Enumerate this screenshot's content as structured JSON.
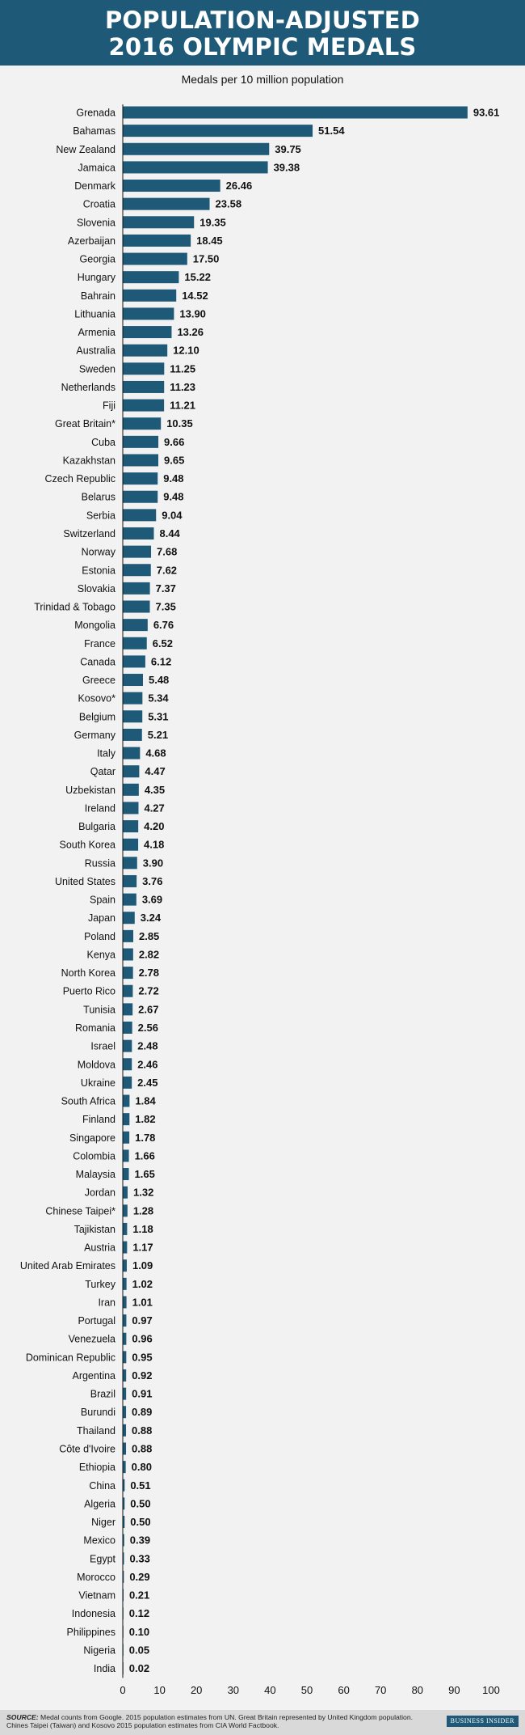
{
  "header": {
    "title_line1": "POPULATION-ADJUSTED",
    "title_line2": "2016 OLYMPIC MEDALS"
  },
  "footer": {
    "source_label": "SOURCE:",
    "source_text": "Medal counts from Google. 2015 population estimates from UN. Great Britain represented by United Kingdom population. Chines Taipei (Taiwan) and Kosovo 2015 population estimates from CIA World Factbook.",
    "brand": "BUSINESS INSIDER"
  },
  "chart_data": {
    "type": "bar",
    "orientation": "horizontal",
    "title": "POPULATION-ADJUSTED 2016 OLYMPIC MEDALS",
    "subtitle": "Medals per 10 million population",
    "xlim": [
      0,
      100
    ],
    "xticks": [
      0,
      10,
      20,
      30,
      40,
      50,
      60,
      70,
      80,
      90,
      100
    ],
    "grid": false,
    "bar_color": "#1e5a78",
    "categories": [
      "Grenada",
      "Bahamas",
      "New Zealand",
      "Jamaica",
      "Denmark",
      "Croatia",
      "Slovenia",
      "Azerbaijan",
      "Georgia",
      "Hungary",
      "Bahrain",
      "Lithuania",
      "Armenia",
      "Australia",
      "Sweden",
      "Netherlands",
      "Fiji",
      "Great Britain*",
      "Cuba",
      "Kazakhstan",
      "Czech Republic",
      "Belarus",
      "Serbia",
      "Switzerland",
      "Norway",
      "Estonia",
      "Slovakia",
      "Trinidad & Tobago",
      "Mongolia",
      "France",
      "Canada",
      "Greece",
      "Kosovo*",
      "Belgium",
      "Germany",
      "Italy",
      "Qatar",
      "Uzbekistan",
      "Ireland",
      "Bulgaria",
      "South Korea",
      "Russia",
      "United States",
      "Spain",
      "Japan",
      "Poland",
      "Kenya",
      "North Korea",
      "Puerto Rico",
      "Tunisia",
      "Romania",
      "Israel",
      "Moldova",
      "Ukraine",
      "South Africa",
      "Finland",
      "Singapore",
      "Colombia",
      "Malaysia",
      "Jordan",
      "Chinese Taipei*",
      "Tajikistan",
      "Austria",
      "United Arab Emirates",
      "Turkey",
      "Iran",
      "Portugal",
      "Venezuela",
      "Dominican Republic",
      "Argentina",
      "Brazil",
      "Burundi",
      "Thailand",
      "Côte d'Ivoire",
      "Ethiopia",
      "China",
      "Algeria",
      "Niger",
      "Mexico",
      "Egypt",
      "Morocco",
      "Vietnam",
      "Indonesia",
      "Philippines",
      "Nigeria",
      "India"
    ],
    "values": [
      93.61,
      51.54,
      39.75,
      39.38,
      26.46,
      23.58,
      19.35,
      18.45,
      17.5,
      15.22,
      14.52,
      13.9,
      13.26,
      12.1,
      11.25,
      11.23,
      11.21,
      10.35,
      9.66,
      9.65,
      9.48,
      9.48,
      9.04,
      8.44,
      7.68,
      7.62,
      7.37,
      7.35,
      6.76,
      6.52,
      6.12,
      5.48,
      5.34,
      5.31,
      5.21,
      4.68,
      4.47,
      4.35,
      4.27,
      4.2,
      4.18,
      3.9,
      3.76,
      3.69,
      3.24,
      2.85,
      2.82,
      2.78,
      2.72,
      2.67,
      2.56,
      2.48,
      2.46,
      2.45,
      1.84,
      1.82,
      1.78,
      1.66,
      1.65,
      1.32,
      1.28,
      1.18,
      1.17,
      1.09,
      1.02,
      1.01,
      0.97,
      0.96,
      0.95,
      0.92,
      0.91,
      0.89,
      0.88,
      0.88,
      0.8,
      0.51,
      0.5,
      0.5,
      0.39,
      0.33,
      0.29,
      0.21,
      0.12,
      0.1,
      0.05,
      0.02
    ],
    "value_labels": [
      "93.61",
      "51.54",
      "39.75",
      "39.38",
      "26.46",
      "23.58",
      "19.35",
      "18.45",
      "17.50",
      "15.22",
      "14.52",
      "13.90",
      "13.26",
      "12.10",
      "11.25",
      "11.23",
      "11.21",
      "10.35",
      "9.66",
      "9.65",
      "9.48",
      "9.48",
      "9.04",
      "8.44",
      "7.68",
      "7.62",
      "7.37",
      "7.35",
      "6.76",
      "6.52",
      "6.12",
      "5.48",
      "5.34",
      "5.31",
      "5.21",
      "4.68",
      "4.47",
      "4.35",
      "4.27",
      "4.20",
      "4.18",
      "3.90",
      "3.76",
      "3.69",
      "3.24",
      "2.85",
      "2.82",
      "2.78",
      "2.72",
      "2.67",
      "2.56",
      "2.48",
      "2.46",
      "2.45",
      "1.84",
      "1.82",
      "1.78",
      "1.66",
      "1.65",
      "1.32",
      "1.28",
      "1.18",
      "1.17",
      "1.09",
      "1.02",
      "1.01",
      "0.97",
      "0.96",
      "0.95",
      "0.92",
      "0.91",
      "0.89",
      "0.88",
      "0.88",
      "0.80",
      "0.51",
      "0.50",
      "0.50",
      "0.39",
      "0.33",
      "0.29",
      "0.21",
      "0.12",
      "0.10",
      "0.05",
      "0.02"
    ]
  }
}
